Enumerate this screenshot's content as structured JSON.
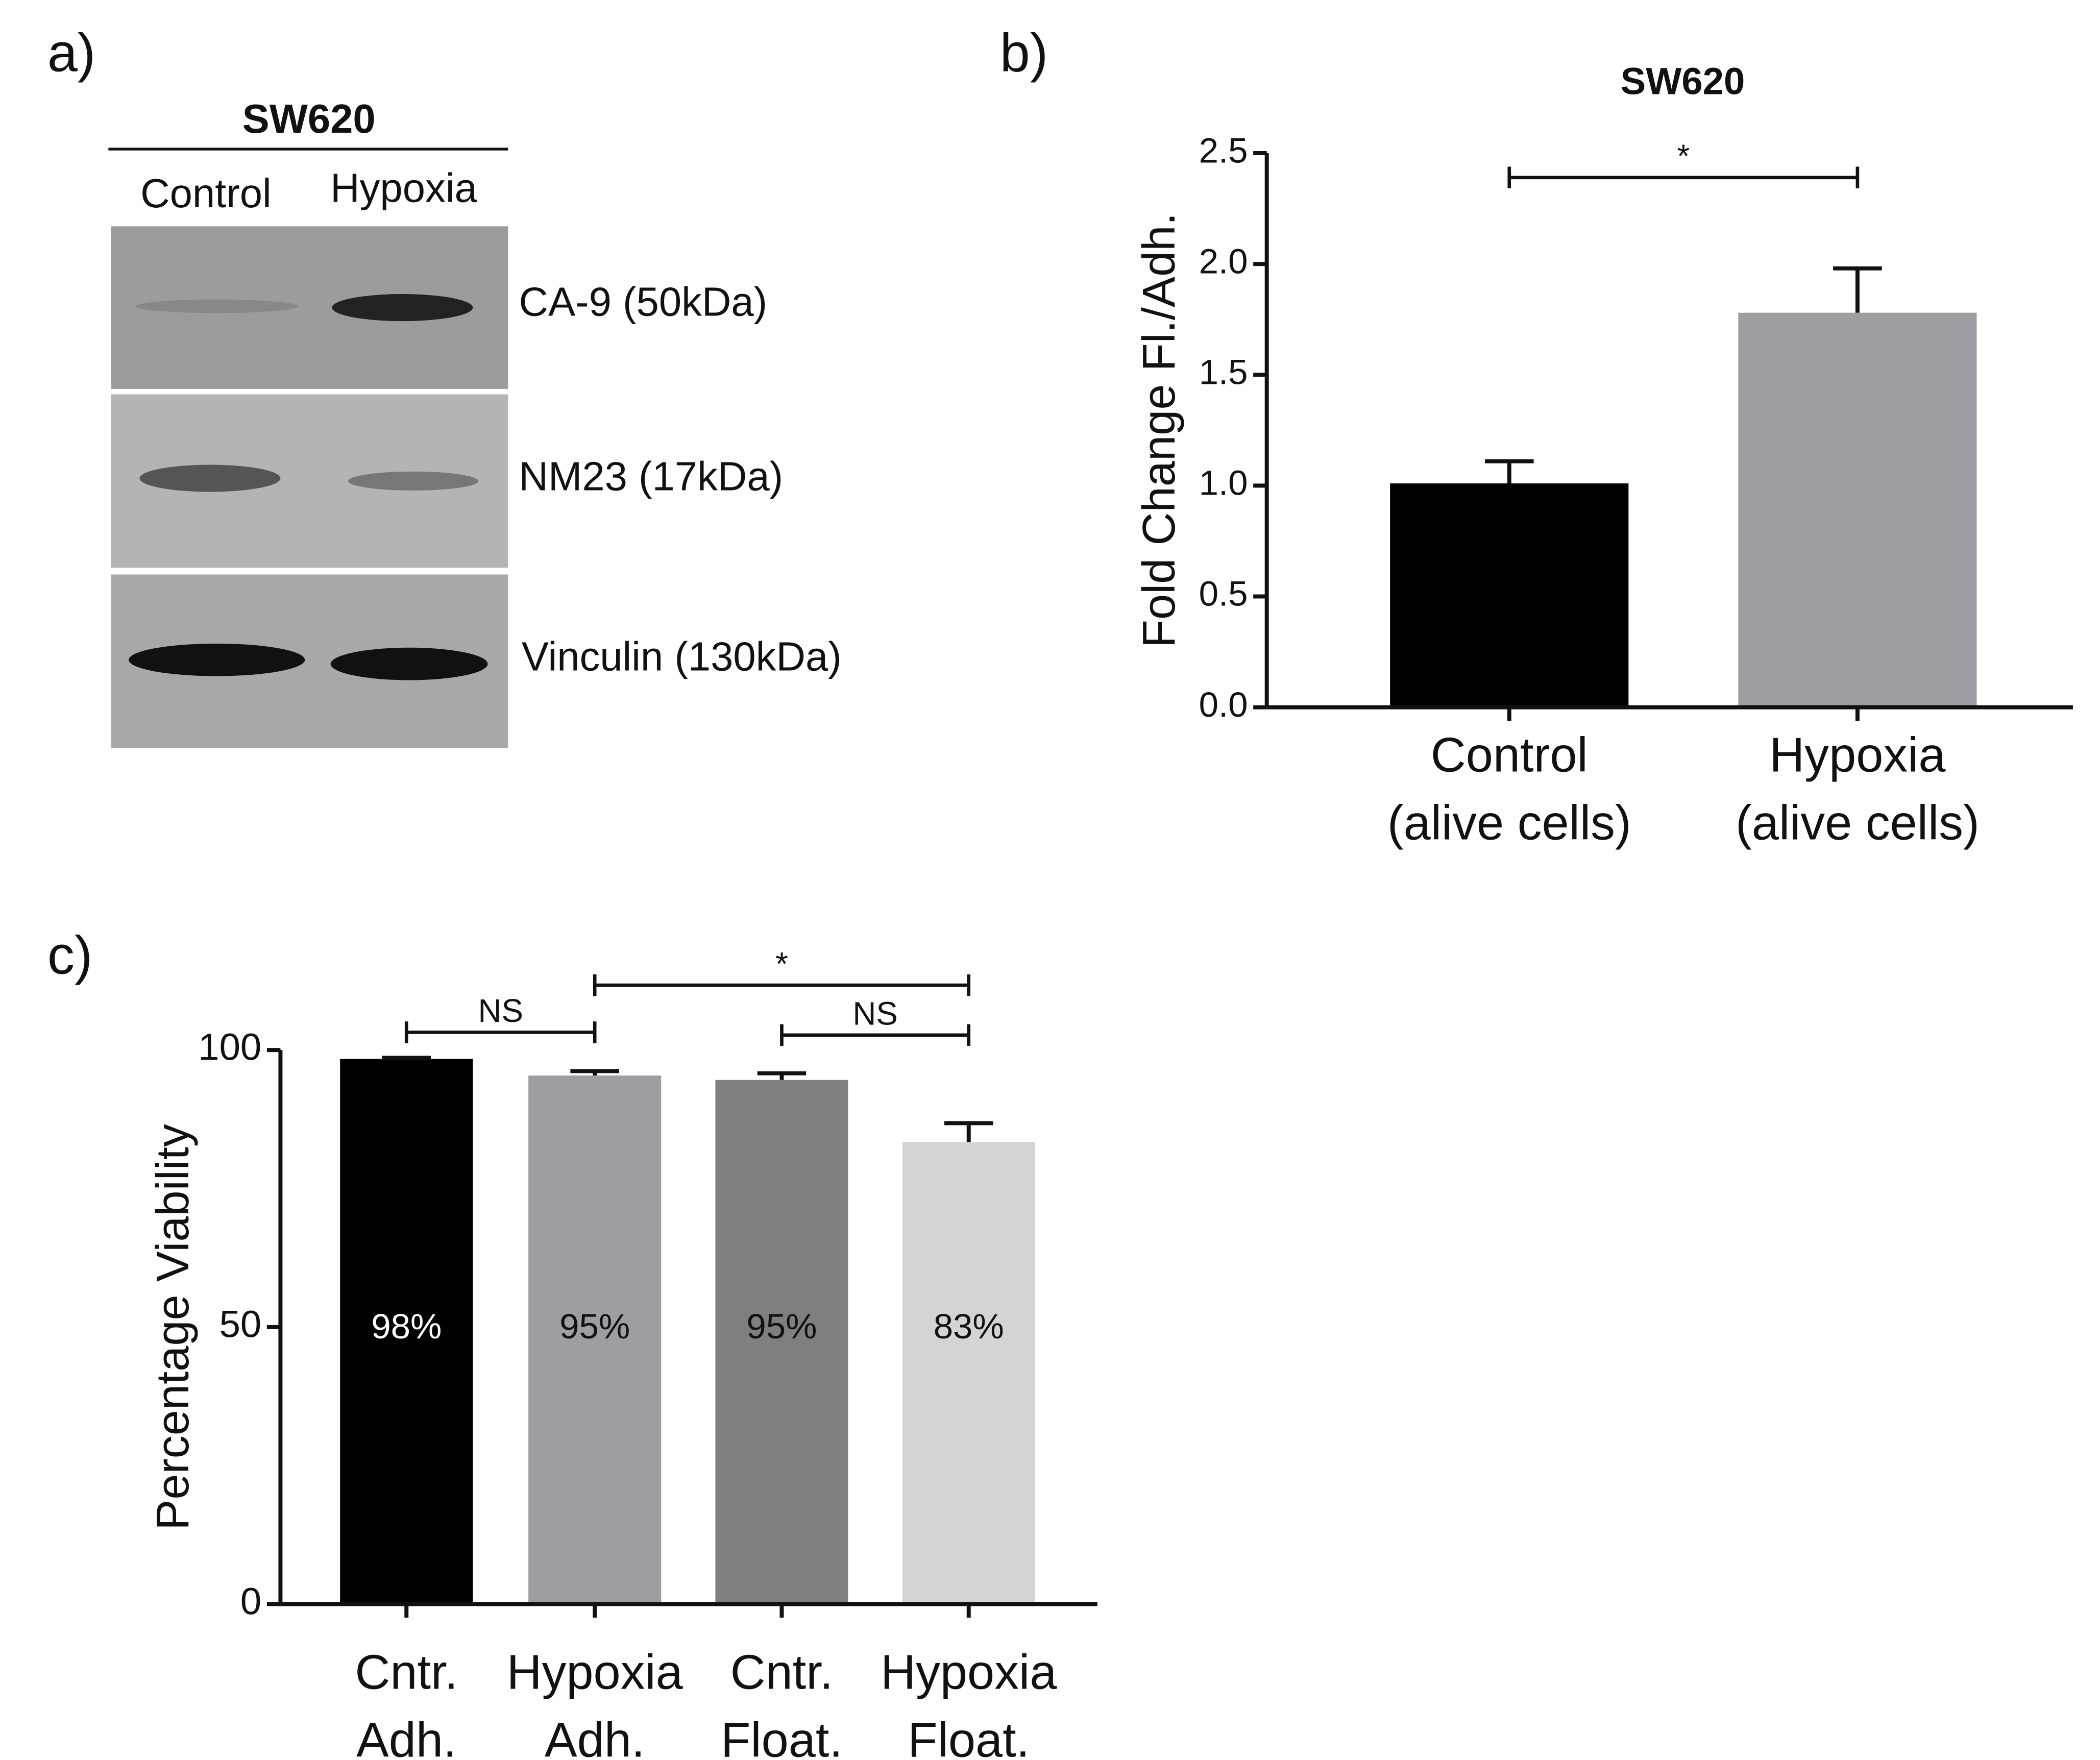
{
  "panel_labels": [
    "a)",
    "b)",
    "c)"
  ],
  "blot": {
    "title": "SW620",
    "lanes": [
      "Control",
      "Hypoxia"
    ],
    "bands": [
      "CA-9 (50kDa)",
      "NM23 (17kDa)",
      "Vinculin (130kDa)"
    ]
  },
  "chart_data": [
    {
      "type": "bar",
      "title": "SW620",
      "ylabel": "Fold Change Fl./Adh.",
      "categories": [
        [
          "Control",
          "(alive cells)"
        ],
        [
          "Hypoxia",
          "(alive cells)"
        ]
      ],
      "values": [
        1.01,
        1.78
      ],
      "errors": [
        0.1,
        0.2
      ],
      "colors": [
        "#000000",
        "#9d9da2"
      ],
      "ylim": [
        0,
        2.5
      ],
      "yticks": [
        {
          "value": 0,
          "label": "0.0"
        },
        {
          "value": 0.5,
          "label": "0.5"
        },
        {
          "value": 1,
          "label": "1.0"
        },
        {
          "value": 1.5,
          "label": "1.5"
        },
        {
          "value": 2,
          "label": "2.0"
        },
        {
          "value": 2.5,
          "label": "2.5"
        }
      ],
      "brackets": [
        {
          "from": 0,
          "to": 1,
          "y": 2.39,
          "label": "*"
        }
      ]
    },
    {
      "type": "bar",
      "ylabel": "Percentage Viability",
      "categories": [
        [
          "Cntr.",
          "Adh."
        ],
        [
          "Hypoxia",
          "Adh."
        ],
        [
          "Cntr.",
          "Float."
        ],
        [
          "Hypoxia",
          "Float."
        ]
      ],
      "values": [
        98.4,
        95.4,
        94.6,
        83.4
      ],
      "errors": [
        0.2,
        0.8,
        1.2,
        3.4
      ],
      "value_labels": [
        "98%",
        "95%",
        "95%",
        "83%"
      ],
      "colors": [
        "#000000",
        "#9d9da2",
        "#7f7f7f",
        "#d4d4d4"
      ],
      "value_label_colors": [
        "#ffffff",
        "#111111",
        "#111111",
        "#111111"
      ],
      "ylim": [
        0,
        100
      ],
      "yticks": [
        0,
        50,
        100
      ],
      "brackets": [
        {
          "from": 0,
          "to": 1,
          "y": 103.2,
          "label": "NS"
        },
        {
          "from": 1,
          "to": 3,
          "y": 111.7,
          "label": "*"
        },
        {
          "from": 2,
          "to": 3,
          "y": 102.7,
          "label": "NS"
        }
      ]
    }
  ]
}
